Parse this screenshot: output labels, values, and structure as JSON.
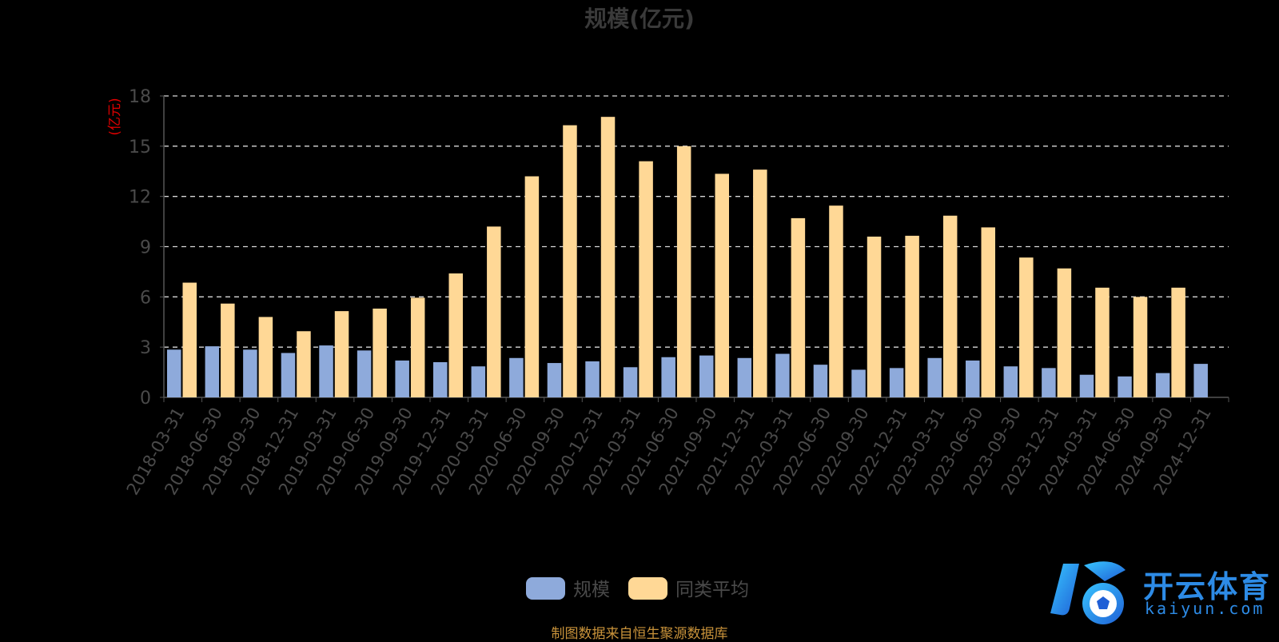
{
  "title": "规模(亿元)",
  "source_note": "制图数据来自恒生聚源数据库",
  "watermark": {
    "brand": "开云体育",
    "domain": "kaiyun.com"
  },
  "chart_data": {
    "type": "bar",
    "ylabel": "(亿元)",
    "ylim": [
      0,
      18
    ],
    "yticks": [
      0,
      3,
      6,
      9,
      12,
      15,
      18
    ],
    "grid": true,
    "legend_position": "bottom-center",
    "categories": [
      "2018-03-31",
      "2018-06-30",
      "2018-09-30",
      "2018-12-31",
      "2019-03-31",
      "2019-06-30",
      "2019-09-30",
      "2019-12-31",
      "2020-03-31",
      "2020-06-30",
      "2020-09-30",
      "2020-12-31",
      "2021-03-31",
      "2021-06-30",
      "2021-09-30",
      "2021-12-31",
      "2022-03-31",
      "2022-06-30",
      "2022-09-30",
      "2022-12-31",
      "2023-03-31",
      "2023-06-30",
      "2023-09-30",
      "2023-12-31",
      "2024-03-31",
      "2024-06-30",
      "2024-09-30",
      "2024-12-31"
    ],
    "series": [
      {
        "name": "规模",
        "color": "#8eaadb",
        "values": [
          2.85,
          3.05,
          2.85,
          2.65,
          3.1,
          2.8,
          2.2,
          2.1,
          1.85,
          2.35,
          2.05,
          2.15,
          1.8,
          2.4,
          2.5,
          2.35,
          2.6,
          1.95,
          1.65,
          1.75,
          2.35,
          2.2,
          1.85,
          1.75,
          1.35,
          1.25,
          1.45,
          2.0
        ]
      },
      {
        "name": "同类平均",
        "color": "#ffd896",
        "values": [
          6.85,
          5.6,
          4.8,
          3.95,
          5.15,
          5.3,
          5.95,
          7.4,
          10.2,
          13.2,
          16.25,
          16.75,
          14.1,
          15.0,
          13.35,
          13.6,
          10.7,
          11.45,
          9.6,
          9.65,
          10.85,
          10.15,
          8.35,
          7.7,
          6.55,
          6.0,
          6.55,
          null
        ]
      }
    ]
  }
}
